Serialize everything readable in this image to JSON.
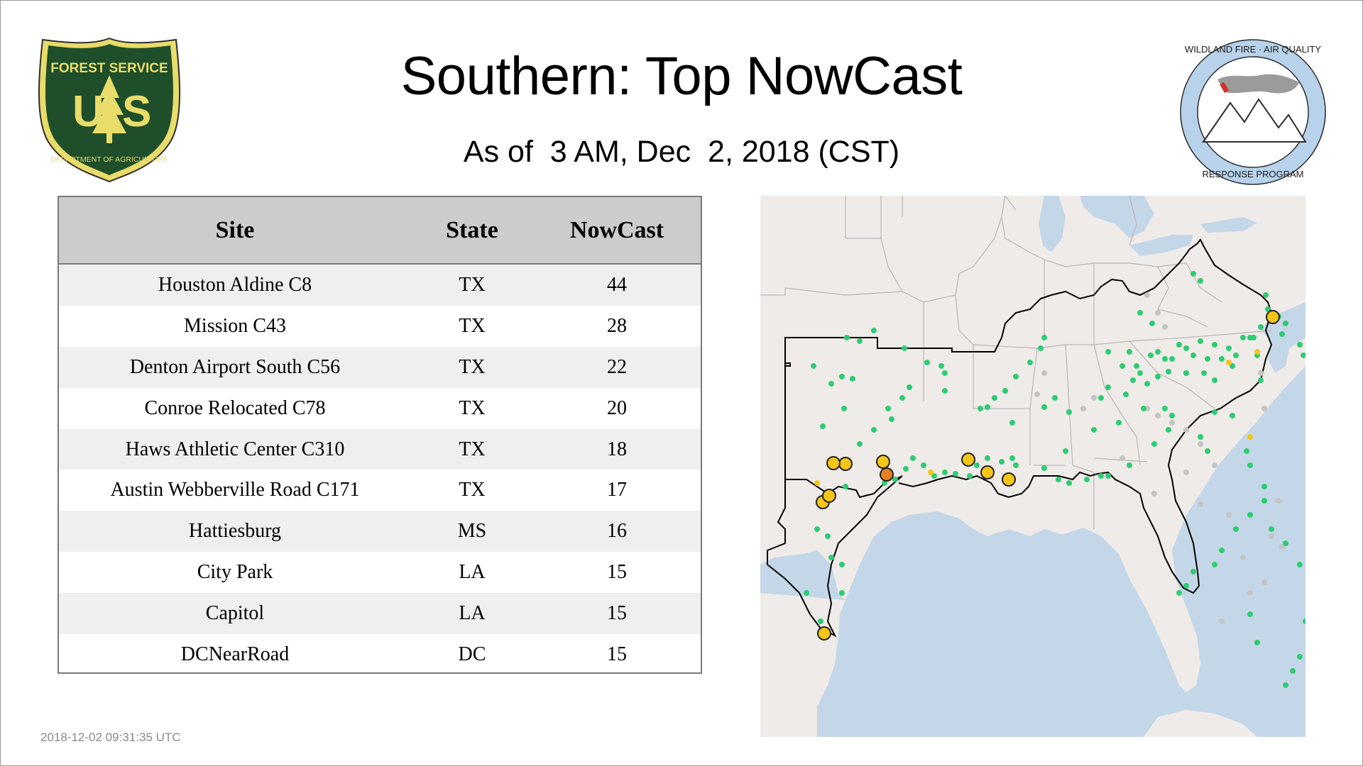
{
  "header": {
    "title": "Southern: Top NowCast",
    "subtitle": "As of  3 AM, Dec  2, 2018 (CST)"
  },
  "logos": {
    "forest_service": {
      "top_text": "FOREST SERVICE",
      "letters": "U S",
      "bottom_text": "DEPARTMENT OF AGRICULTURE",
      "icon": "forest-service-shield-icon"
    },
    "wildland": {
      "top_text": "WILDLAND FIRE · AIR QUALITY",
      "bottom_text": "RESPONSE PROGRAM",
      "icon": "wildland-fire-air-quality-seal-icon"
    }
  },
  "table": {
    "headers": [
      "Site",
      "State",
      "NowCast"
    ],
    "rows": [
      {
        "site": "Houston Aldine C8",
        "state": "TX",
        "nowcast": "44"
      },
      {
        "site": "Mission C43",
        "state": "TX",
        "nowcast": "28"
      },
      {
        "site": "Denton Airport South C56",
        "state": "TX",
        "nowcast": "22"
      },
      {
        "site": "Conroe Relocated C78",
        "state": "TX",
        "nowcast": "20"
      },
      {
        "site": "Haws Athletic Center C310",
        "state": "TX",
        "nowcast": "18"
      },
      {
        "site": "Austin Webberville Road C171",
        "state": "TX",
        "nowcast": "17"
      },
      {
        "site": "Hattiesburg",
        "state": "MS",
        "nowcast": "16"
      },
      {
        "site": "City Park",
        "state": "LA",
        "nowcast": "15"
      },
      {
        "site": "Capitol",
        "state": "LA",
        "nowcast": "15"
      },
      {
        "site": "DCNearRoad",
        "state": "DC",
        "nowcast": "15"
      }
    ]
  },
  "map": {
    "colors": {
      "land": "#efebe9",
      "water": "#c3d7e8",
      "state_border": "#b7b7b7",
      "region_outline": "#000000",
      "good": "#2ecc71",
      "moderate": "#f5c518",
      "usg": "#e67e22",
      "no_data": "#c4c4c4"
    }
  },
  "footer": {
    "timestamp": "2018-12-02 09:31:35 UTC"
  }
}
